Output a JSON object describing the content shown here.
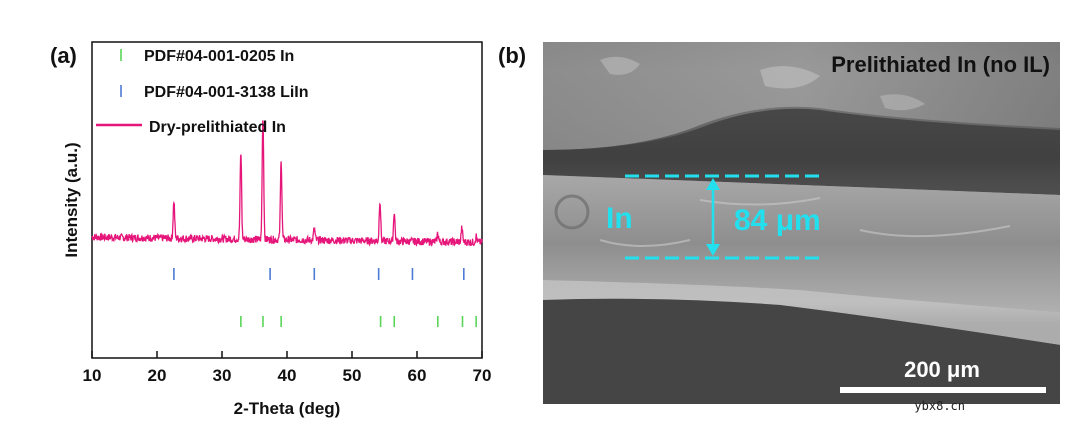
{
  "chart_data": {
    "type": "line",
    "panel_label": "(a)",
    "xlabel": "2-Theta (deg)",
    "ylabel": "Intensity (a.u.)",
    "xlim": [
      10,
      70
    ],
    "x_ticks": [
      10,
      20,
      30,
      40,
      50,
      60,
      70
    ],
    "legend_position": "top-left",
    "series": [
      {
        "name": "Dry-prelithiated In",
        "color": "#e6157a",
        "baseline": 0.12,
        "peaks": [
          {
            "x": 22.6,
            "height": 0.3
          },
          {
            "x": 32.9,
            "height": 0.7
          },
          {
            "x": 36.3,
            "height": 1.0
          },
          {
            "x": 39.1,
            "height": 0.66
          },
          {
            "x": 44.2,
            "height": 0.09
          },
          {
            "x": 54.3,
            "height": 0.33
          },
          {
            "x": 56.5,
            "height": 0.24
          },
          {
            "x": 63.2,
            "height": 0.07
          },
          {
            "x": 66.9,
            "height": 0.11
          },
          {
            "x": 69.1,
            "height": 0.05
          }
        ]
      }
    ],
    "references": [
      {
        "name": "PDF#04-001-0205 In",
        "color": "#59d659",
        "positions": [
          32.9,
          36.3,
          39.1,
          54.4,
          56.5,
          63.2,
          67.0,
          69.1
        ]
      },
      {
        "name": "PDF#04-001-3138 LiIn",
        "color": "#4d7bd6",
        "positions": [
          22.6,
          37.4,
          44.2,
          54.1,
          59.3,
          67.2
        ]
      }
    ]
  },
  "sem_panel": {
    "panel_label": "(b)",
    "title": "Prelithiated In (no IL)",
    "layer_label": "In",
    "thickness_label": "84 μm",
    "scale_bar_label": "200 μm",
    "accent_color": "#22e0ee"
  },
  "watermark": "ybx8.cn"
}
